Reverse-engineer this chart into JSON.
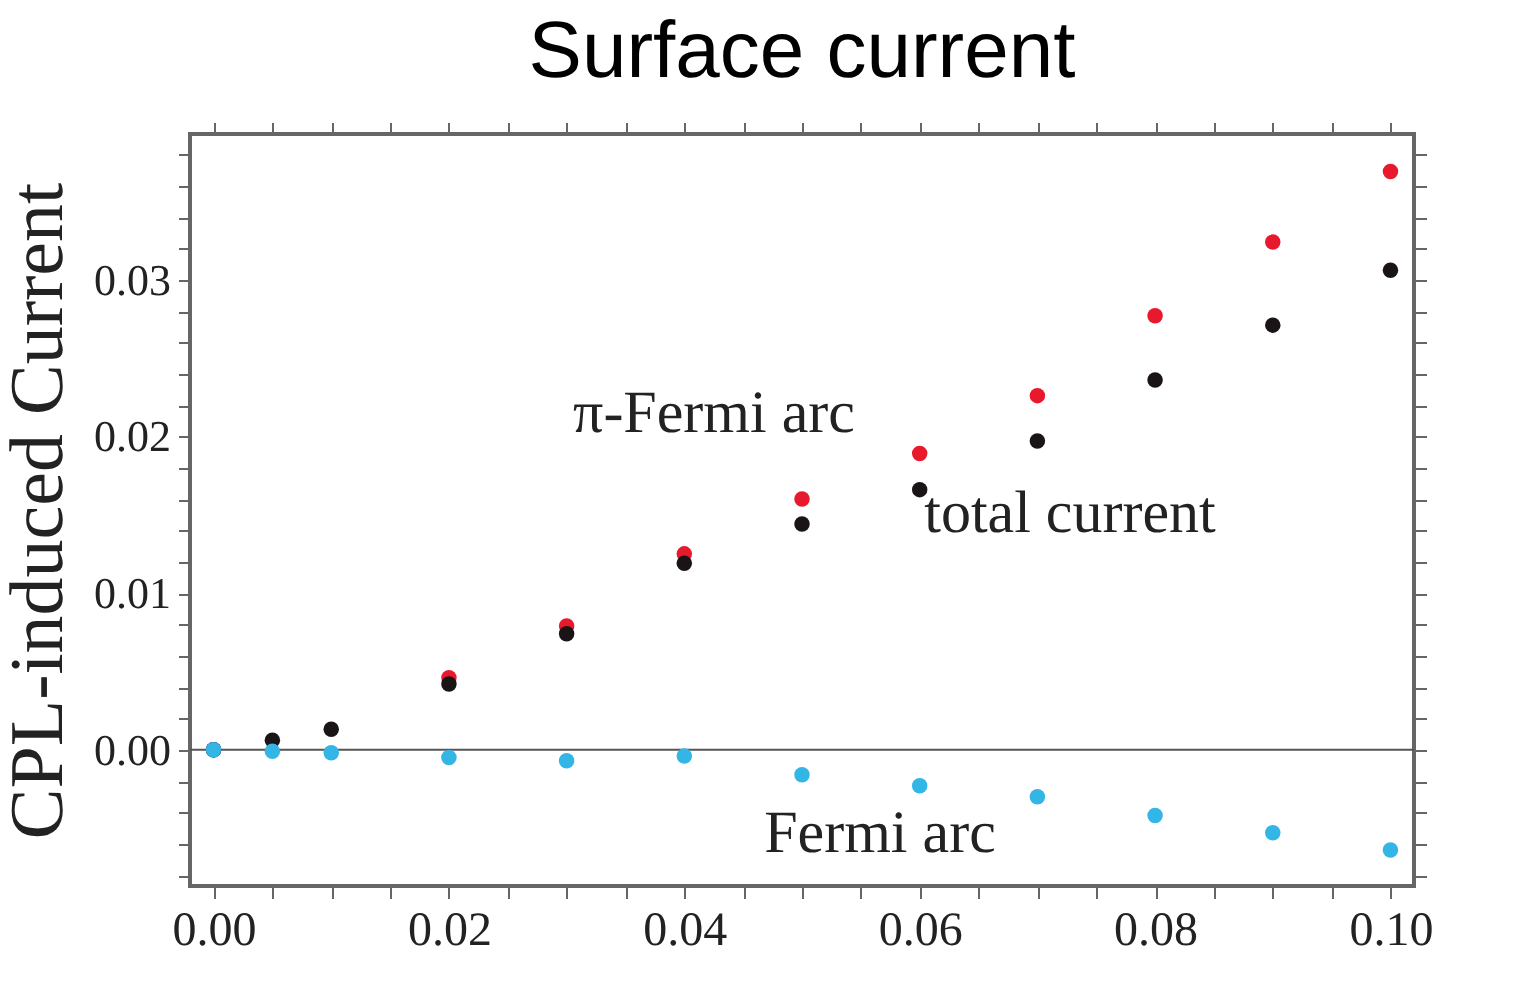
{
  "chart_data": {
    "type": "scatter",
    "title": "Surface current",
    "ylabel": "CPL-induced Current",
    "marker": "circle",
    "grid": false,
    "x": [
      0,
      0.005,
      0.01,
      0.02,
      0.03,
      0.04,
      0.05,
      0.06,
      0.07,
      0.08,
      0.09,
      0.1
    ],
    "series": [
      {
        "name": "π-Fermi arc",
        "color": "#e8192c",
        "values": [
          0,
          null,
          null,
          0.0046,
          0.0079,
          0.0125,
          0.016,
          0.0189,
          0.0226,
          0.0277,
          0.0324,
          0.0369
        ]
      },
      {
        "name": "total current",
        "color": "#1a1416",
        "values": [
          0,
          0.0006,
          0.0013,
          0.0042,
          0.0074,
          0.0119,
          0.0144,
          0.0166,
          0.0197,
          0.0236,
          0.0271,
          0.0306
        ]
      },
      {
        "name": "Fermi arc",
        "color": "#33b5e5",
        "values": [
          0,
          -0.0001,
          -0.0002,
          -0.0005,
          -0.0007,
          -0.0004,
          -0.0016,
          -0.0023,
          -0.003,
          -0.0042,
          -0.0053,
          -0.0064
        ]
      }
    ],
    "xlim": [
      -0.002,
      0.102
    ],
    "ylim": [
      -0.0087,
      0.0393
    ],
    "xticks": [
      {
        "value": 0,
        "label": "0.00"
      },
      {
        "value": 0.005,
        "label": null
      },
      {
        "value": 0.01,
        "label": null
      },
      {
        "value": 0.015,
        "label": null
      },
      0.02,
      {
        "value": 0.025,
        "label": null
      },
      {
        "value": 0.03,
        "label": null
      },
      {
        "value": 0.035,
        "label": null
      },
      0.04,
      {
        "value": 0.045,
        "label": null
      },
      {
        "value": 0.05,
        "label": null
      },
      {
        "value": 0.055,
        "label": null
      },
      0.06,
      {
        "value": 0.065,
        "label": null
      },
      {
        "value": 0.07,
        "label": null
      },
      {
        "value": 0.075,
        "label": null
      },
      0.08,
      {
        "value": 0.085,
        "label": null
      },
      {
        "value": 0.09,
        "label": null
      },
      {
        "value": 0.095,
        "label": null
      },
      {
        "value": 0.1,
        "label": "0.10"
      }
    ],
    "yticks": [
      {
        "value": -0.008,
        "label": null
      },
      {
        "value": -0.006,
        "label": null
      },
      {
        "value": -0.004,
        "label": null
      },
      {
        "value": -0.002,
        "label": null
      },
      {
        "value": 0,
        "label": "0.00"
      },
      {
        "value": 0.002,
        "label": null
      },
      {
        "value": 0.004,
        "label": null
      },
      {
        "value": 0.006,
        "label": null
      },
      {
        "value": 0.008,
        "label": null
      },
      0.01,
      {
        "value": 0.012,
        "label": null
      },
      {
        "value": 0.014,
        "label": null
      },
      {
        "value": 0.016,
        "label": null
      },
      {
        "value": 0.018,
        "label": null
      },
      0.02,
      {
        "value": 0.022,
        "label": null
      },
      {
        "value": 0.024,
        "label": null
      },
      {
        "value": 0.026,
        "label": null
      },
      {
        "value": 0.028,
        "label": null
      },
      0.03,
      {
        "value": 0.032,
        "label": null
      },
      {
        "value": 0.034,
        "label": null
      },
      {
        "value": 0.036,
        "label": null
      },
      {
        "value": 0.038,
        "label": null
      }
    ],
    "ref_lines": [
      {
        "axis": "y",
        "value": 0,
        "color": "#555555"
      }
    ]
  }
}
